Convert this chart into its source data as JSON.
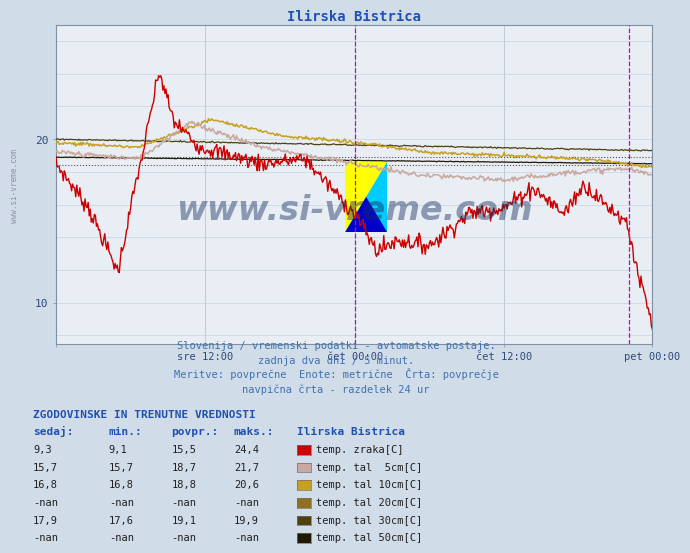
{
  "title": "Ilirska Bistrica",
  "background_color": "#d0dce8",
  "plot_bg_color": "#e8eef4",
  "grid_color_v": "#b0bcc8",
  "grid_color_h": "#c8d4e0",
  "series_colors": {
    "temp_zraka": "#cc0000",
    "temp_tal_5cm": "#c8a8a0",
    "temp_tal_10cm": "#c8a020",
    "temp_tal_20cm": "#907020",
    "temp_tal_30cm": "#504010",
    "temp_tal_50cm": "#201800"
  },
  "ylim": [
    7.5,
    27
  ],
  "n_points": 576,
  "vline1": 288,
  "vline2": 552,
  "hline1": 18.4,
  "hline2": 18.9,
  "info_text1": "Slovenija / vremenski podatki - avtomatske postaje.",
  "info_text2": "zadnja dva dni / 5 minut.",
  "info_text3": "Meritve: povprečne  Enote: metrične  Črta: povprečje",
  "info_text4": "navpična črta - razdelek 24 ur",
  "table_title": "ZGODOVINSKE IN TRENUTNE VREDNOSTI",
  "table_data": [
    [
      "9,3",
      "9,1",
      "15,5",
      "24,4",
      "#cc0000",
      "temp. zraka[C]"
    ],
    [
      "15,7",
      "15,7",
      "18,7",
      "21,7",
      "#c8a8a0",
      "temp. tal  5cm[C]"
    ],
    [
      "16,8",
      "16,8",
      "18,8",
      "20,6",
      "#c8a020",
      "temp. tal 10cm[C]"
    ],
    [
      "-nan",
      "-nan",
      "-nan",
      "-nan",
      "#907020",
      "temp. tal 20cm[C]"
    ],
    [
      "17,9",
      "17,6",
      "19,1",
      "19,9",
      "#504010",
      "temp. tal 30cm[C]"
    ],
    [
      "-nan",
      "-nan",
      "-nan",
      "-nan",
      "#201800",
      "temp. tal 50cm[C]"
    ]
  ],
  "x_tick_positions": [
    0,
    144,
    288,
    432,
    575
  ],
  "x_tick_labels": [
    "",
    "sre 12:00",
    "čet 00:00",
    "čet 12:00",
    "pet 00:00"
  ],
  "y_tick_positions": [
    10,
    20
  ],
  "watermark": "www.si-vreme.com"
}
